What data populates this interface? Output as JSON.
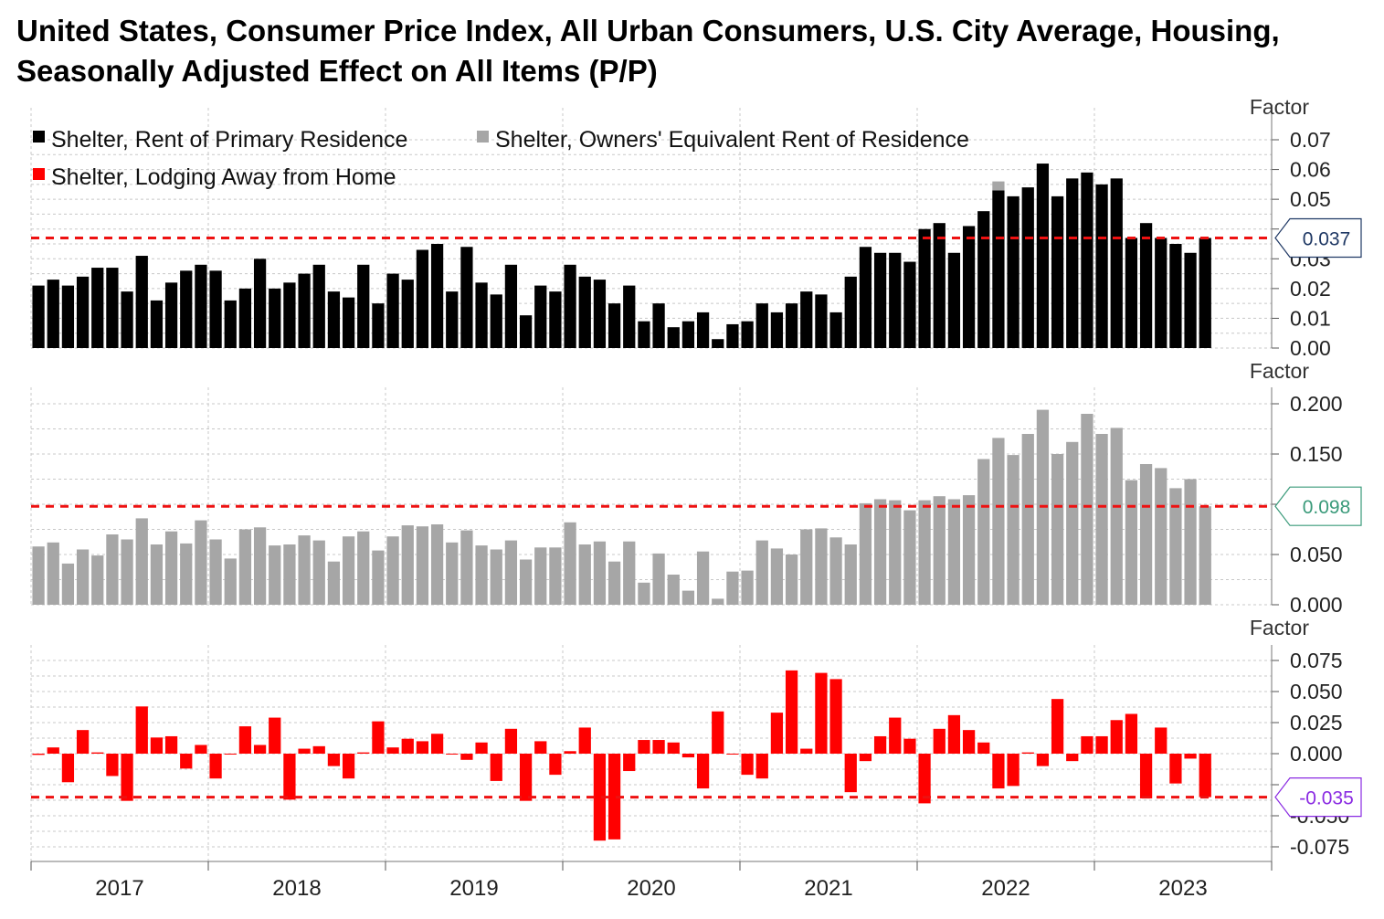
{
  "title": "United States, Consumer Price Index, All Urban Consumers, U.S. City Average, Housing, Seasonally Adjusted Effect on All Items (P/P)",
  "chart_data": [
    {
      "type": "bar",
      "axis_label": "Factor",
      "ylim": [
        0,
        0.075
      ],
      "yticks": [
        "0.00",
        "0.01",
        "0.02",
        "0.03",
        "0.04",
        "0.05",
        "0.06",
        "0.07"
      ],
      "series": [
        {
          "name": "Shelter, Rent of Primary Residence",
          "color": "#000000",
          "values": [
            0.021,
            0.023,
            0.021,
            0.024,
            0.027,
            0.027,
            0.019,
            0.031,
            0.016,
            0.022,
            0.026,
            0.028,
            0.026,
            0.016,
            0.02,
            0.03,
            0.02,
            0.022,
            0.025,
            0.028,
            0.019,
            0.017,
            0.028,
            0.015,
            0.025,
            0.023,
            0.033,
            0.035,
            0.019,
            0.034,
            0.022,
            0.018,
            0.028,
            0.011,
            0.021,
            0.019,
            0.028,
            0.024,
            0.023,
            0.015,
            0.021,
            0.009,
            0.015,
            0.007,
            0.009,
            0.012,
            0.003,
            0.008,
            0.009,
            0.015,
            0.012,
            0.015,
            0.019,
            0.018,
            0.012,
            0.024,
            0.034,
            0.032,
            0.032,
            0.029,
            0.04,
            0.042,
            0.032,
            0.041,
            0.046,
            0.053,
            0.051,
            0.054,
            0.062,
            0.051,
            0.057,
            0.059,
            0.055,
            0.057,
            0.037,
            0.042,
            0.037,
            0.035,
            0.032,
            0.037
          ]
        },
        {
          "name": "Shelter, Owners' Equivalent Rent of Residence",
          "color": "#a6a6a6"
        },
        {
          "name": "Shelter, Lodging Away from Home",
          "color": "#ff0000"
        }
      ],
      "latest_value": "0.037",
      "reference_value": 0.037
    },
    {
      "type": "bar",
      "axis_label": "Factor",
      "ylim": [
        0,
        0.2
      ],
      "yticks": [
        "0.000",
        "0.050",
        "0.100",
        "0.150",
        "0.200"
      ],
      "series": [
        {
          "name": "Shelter, Owners' Equivalent Rent of Residence",
          "color": "#a6a6a6",
          "values": [
            0.058,
            0.062,
            0.041,
            0.055,
            0.049,
            0.07,
            0.065,
            0.086,
            0.06,
            0.073,
            0.061,
            0.084,
            0.065,
            0.046,
            0.075,
            0.077,
            0.059,
            0.06,
            0.069,
            0.064,
            0.043,
            0.068,
            0.073,
            0.054,
            0.068,
            0.079,
            0.078,
            0.08,
            0.062,
            0.074,
            0.059,
            0.055,
            0.064,
            0.045,
            0.057,
            0.057,
            0.082,
            0.06,
            0.063,
            0.043,
            0.063,
            0.022,
            0.051,
            0.03,
            0.014,
            0.053,
            0.006,
            0.033,
            0.034,
            0.064,
            0.056,
            0.05,
            0.075,
            0.076,
            0.067,
            0.06,
            0.101,
            0.105,
            0.104,
            0.094,
            0.104,
            0.108,
            0.105,
            0.109,
            0.145,
            0.166,
            0.149,
            0.17,
            0.194,
            0.15,
            0.162,
            0.19,
            0.17,
            0.176,
            0.124,
            0.14,
            0.136,
            0.116,
            0.125,
            0.098
          ]
        }
      ],
      "latest_value": "0.098",
      "reference_value": 0.098
    },
    {
      "type": "bar",
      "axis_label": "Factor",
      "ylim": [
        -0.085,
        0.085
      ],
      "yticks": [
        "-0.075",
        "-0.050",
        "-0.025",
        "0.000",
        "0.025",
        "0.050",
        "0.075"
      ],
      "series": [
        {
          "name": "Shelter, Lodging Away from Home",
          "color": "#ff0000",
          "values": [
            -0.001,
            0.005,
            -0.023,
            0.019,
            0.001,
            -0.018,
            -0.038,
            0.038,
            0.013,
            0.014,
            -0.012,
            0.007,
            -0.02,
            0.0,
            0.022,
            0.007,
            0.029,
            -0.037,
            0.004,
            0.006,
            -0.01,
            -0.02,
            0.001,
            0.026,
            0.005,
            0.012,
            0.01,
            0.016,
            0.0,
            -0.005,
            0.009,
            -0.022,
            0.02,
            -0.038,
            0.01,
            -0.017,
            0.002,
            0.021,
            -0.07,
            -0.069,
            -0.014,
            0.011,
            0.011,
            0.009,
            -0.003,
            -0.028,
            0.034,
            0.0,
            -0.017,
            -0.02,
            0.033,
            0.067,
            0.004,
            0.065,
            0.06,
            -0.031,
            -0.006,
            0.014,
            0.029,
            0.012,
            -0.04,
            0.02,
            0.031,
            0.019,
            0.009,
            -0.028,
            -0.026,
            0.001,
            -0.01,
            0.044,
            -0.006,
            0.014,
            0.014,
            0.027,
            0.032,
            -0.036,
            0.021,
            -0.024,
            -0.004,
            -0.035
          ]
        }
      ],
      "latest_value": "-0.035",
      "reference_value": -0.035
    }
  ],
  "x_axis": {
    "start": "2017-01",
    "end": "2023-08",
    "years": [
      "2017",
      "2018",
      "2019",
      "2020",
      "2021",
      "2022",
      "2023"
    ]
  },
  "colors": {
    "rent": "#000000",
    "oer": "#a6a6a6",
    "lodging": "#ff0000",
    "reference_line": "#ee1111",
    "callout_1": "#1f3864",
    "callout_2": "#3a9a7a",
    "callout_3": "#8a2be2",
    "grid": "#c8c8c8"
  }
}
